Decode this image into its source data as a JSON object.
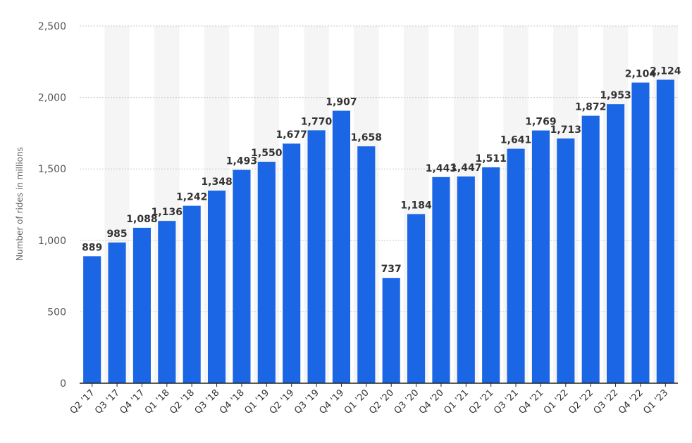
{
  "chart_data": {
    "type": "bar",
    "ylabel": "Number of rides in millions",
    "ylim": [
      0,
      2500
    ],
    "yticks": [
      0,
      500,
      1000,
      1500,
      2000,
      2500
    ],
    "ytick_labels": [
      "0",
      "500",
      "1,000",
      "1,500",
      "2,000",
      "2,500"
    ],
    "grid": true,
    "categories": [
      "Q2 '17",
      "Q3 '17",
      "Q4 '17",
      "Q1 '18",
      "Q2 '18",
      "Q3 '18",
      "Q4 '18",
      "Q1 '19",
      "Q2 '19",
      "Q3 '19",
      "Q4 '19",
      "Q1 '20",
      "Q2 '20",
      "Q3 '20",
      "Q4 '20",
      "Q1 '21",
      "Q2 '21",
      "Q3 '21",
      "Q4 '21",
      "Q1 '22",
      "Q2 '22",
      "Q3 '22",
      "Q4 '22",
      "Q1 '23"
    ],
    "values": [
      889,
      985,
      1088,
      1136,
      1242,
      1348,
      1493,
      1550,
      1677,
      1770,
      1907,
      1658,
      737,
      1184,
      1443,
      1447,
      1511,
      1641,
      1769,
      1713,
      1872,
      1953,
      2104,
      2124
    ],
    "value_labels": [
      "889",
      "985",
      "1,088",
      "1,136",
      "1,242",
      "1,348",
      "1,493",
      "1,550",
      "1,677",
      "1,770",
      "1,907",
      "1,658",
      "737",
      "1,184",
      "1,443",
      "1,447",
      "1,511",
      "1,641",
      "1,769",
      "1,713",
      "1,872",
      "1,953",
      "2,104",
      "2,124"
    ],
    "colors": {
      "bar": "#1a66e5",
      "band": "#f5f5f5",
      "grid": "#c8c8c8",
      "axis": "#222222"
    }
  }
}
